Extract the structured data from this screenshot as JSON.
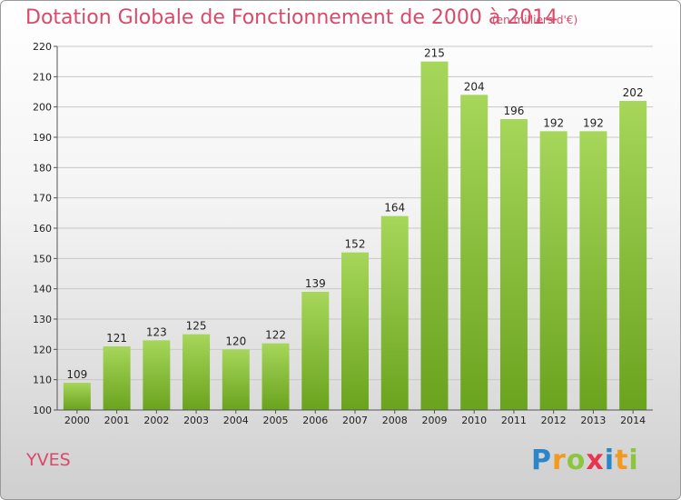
{
  "header": {
    "title": "Dotation Globale de Fonctionnement de 2000 à 2014",
    "unit": "(en milliers d'€)"
  },
  "footer": {
    "commune": "YVES",
    "logo_letters": [
      "P",
      "r",
      "o",
      "x",
      "i",
      "t",
      "i"
    ],
    "logo_colors": [
      "#2a86c8",
      "#f29a1f",
      "#8cc63f",
      "#e8344e",
      "#2a86c8",
      "#f29a1f",
      "#8cc63f"
    ]
  },
  "colors": {
    "bar_top": "#a6d65a",
    "bar_bottom": "#6aa31e",
    "grid": "#c8c8c8",
    "title": "#d94a6a"
  },
  "chart_data": {
    "type": "bar",
    "title": "Dotation Globale de Fonctionnement de 2000 à 2014",
    "subtitle": "(en milliers d'€)",
    "xlabel": "",
    "ylabel": "",
    "categories": [
      "2000",
      "2001",
      "2002",
      "2003",
      "2004",
      "2005",
      "2006",
      "2007",
      "2008",
      "2009",
      "2010",
      "2011",
      "2012",
      "2013",
      "2014"
    ],
    "values": [
      109,
      121,
      123,
      125,
      120,
      122,
      139,
      152,
      164,
      215,
      204,
      196,
      192,
      192,
      202
    ],
    "ylim": [
      100,
      220
    ],
    "yticks": [
      100,
      110,
      120,
      130,
      140,
      150,
      160,
      170,
      180,
      190,
      200,
      210,
      220
    ],
    "grid": true,
    "legend": "none"
  }
}
